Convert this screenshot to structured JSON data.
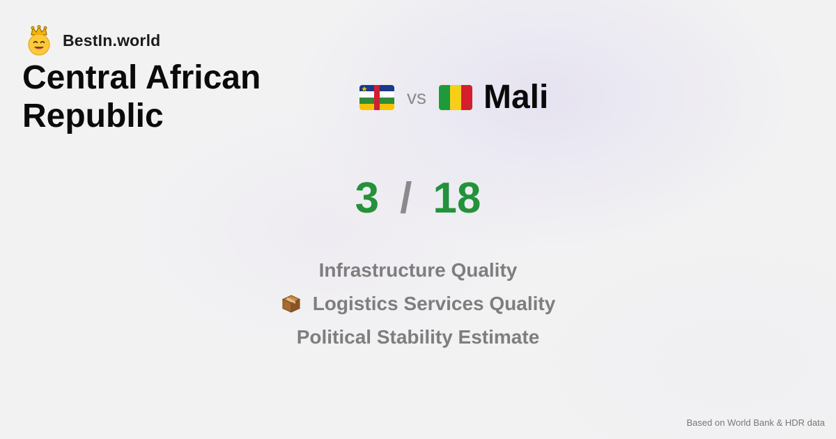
{
  "brand": {
    "name": "BestIn.world",
    "icon": "crowned-smiley-icon"
  },
  "comparison": {
    "country_a": {
      "name": "Central African Republic",
      "flag_icon": "central-african-republic-flag-icon"
    },
    "vs_label": "vs",
    "country_b": {
      "name": "Mali",
      "flag_icon": "mali-flag-icon"
    }
  },
  "score": {
    "left": "3",
    "separator": "/",
    "right": "18"
  },
  "metrics": [
    {
      "label": "Infrastructure Quality",
      "icon": ""
    },
    {
      "label": "Logistics Services Quality",
      "icon": "package-icon"
    },
    {
      "label": "Political Stability Estimate",
      "icon": ""
    }
  ],
  "footer": {
    "source": "Based on World Bank & HDR data"
  },
  "colors": {
    "score_green": "#23923a",
    "muted_gray": "#7e7e7e",
    "background": "#f2f2f3"
  }
}
